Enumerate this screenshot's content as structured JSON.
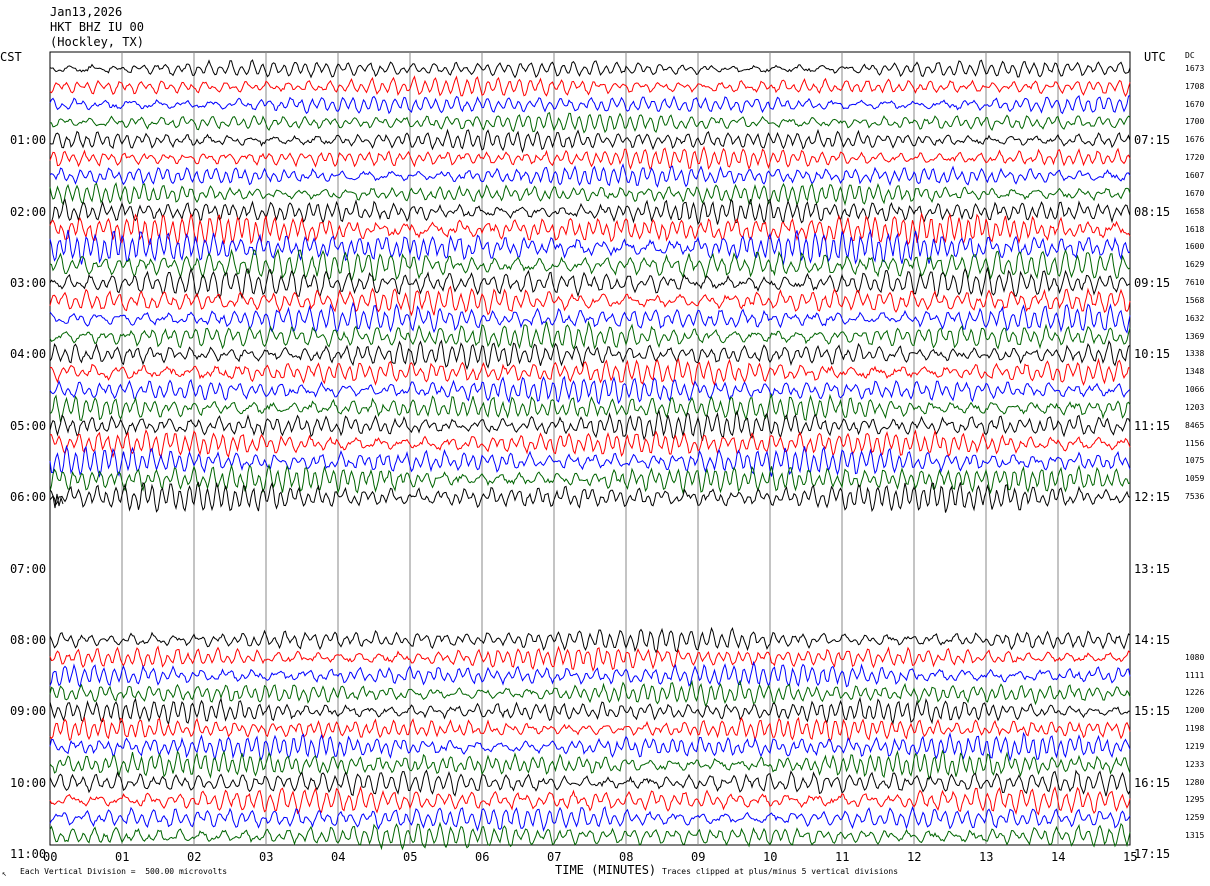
{
  "header": {
    "date": "Jan13,2026",
    "station": "HKT BHZ IU 00",
    "location": "(Hockley, TX)"
  },
  "left_tz": "CST",
  "right_tz": "UTC",
  "dc_header": "DC",
  "footer": {
    "scale_note": "Each Vertical Division =  500.00 microvolts",
    "clip_note": "Traces clipped at plus/minus 5 vertical divisions",
    "corner_mark": "↖"
  },
  "colors": {
    "black": "#000000",
    "red": "#ff0000",
    "blue": "#0000ff",
    "green": "#006400",
    "grid": "#888888"
  },
  "chart_data": {
    "type": "line",
    "title": "",
    "xlabel": "TIME (MINUTES)",
    "x_ticks": [
      "00",
      "01",
      "02",
      "03",
      "04",
      "05",
      "06",
      "07",
      "08",
      "09",
      "10",
      "11",
      "12",
      "13",
      "14",
      "15"
    ],
    "xlim": [
      0,
      15
    ],
    "rows_per_hour": 4,
    "color_cycle": [
      "black",
      "red",
      "blue",
      "green"
    ],
    "left_time_labels": [
      "01:00",
      "02:00",
      "03:00",
      "04:00",
      "05:00",
      "06:00",
      "07:00",
      "08:00",
      "09:00",
      "10:00",
      "11:00"
    ],
    "right_time_labels": [
      "07:15",
      "08:15",
      "09:15",
      "10:15",
      "11:15",
      "12:15",
      "13:15",
      "14:15",
      "15:15",
      "16:15",
      "17:15"
    ],
    "traces": [
      {
        "dc": "1673",
        "amp": 0.9
      },
      {
        "dc": "1708",
        "amp": 1.0
      },
      {
        "dc": "1670",
        "amp": 1.0
      },
      {
        "dc": "1700",
        "amp": 1.0
      },
      {
        "dc": "1676",
        "amp": 1.1
      },
      {
        "dc": "1720",
        "amp": 1.1
      },
      {
        "dc": "1607",
        "amp": 1.1
      },
      {
        "dc": "1670",
        "amp": 1.1
      },
      {
        "dc": "1658",
        "amp": 1.3
      },
      {
        "dc": "1618",
        "amp": 1.6
      },
      {
        "dc": "1600",
        "amp": 1.7
      },
      {
        "dc": "1629",
        "amp": 1.6
      },
      {
        "dc": "7610",
        "amp": 1.5
      },
      {
        "dc": "1568",
        "amp": 1.4
      },
      {
        "dc": "1632",
        "amp": 1.4
      },
      {
        "dc": "1369",
        "amp": 1.4
      },
      {
        "dc": "1338",
        "amp": 1.4
      },
      {
        "dc": "1348",
        "amp": 1.4
      },
      {
        "dc": "1066",
        "amp": 1.4
      },
      {
        "dc": "1203",
        "amp": 1.4
      },
      {
        "dc": "8465",
        "amp": 1.4
      },
      {
        "dc": "1156",
        "amp": 1.4
      },
      {
        "dc": "1075",
        "amp": 1.4
      },
      {
        "dc": "1059",
        "amp": 1.5
      },
      {
        "dc": "7536",
        "amp": 1.5
      },
      {
        "dc": "",
        "amp": 0.0
      },
      {
        "dc": "",
        "amp": 0.0
      },
      {
        "dc": "",
        "amp": 0.0
      },
      {
        "dc": "",
        "amp": 0.0
      },
      {
        "dc": "",
        "amp": 0.0
      },
      {
        "dc": "",
        "amp": 0.0
      },
      {
        "dc": "",
        "amp": 0.0
      },
      {
        "dc": "",
        "amp": 1.2
      },
      {
        "dc": "1080",
        "amp": 1.2
      },
      {
        "dc": "1111",
        "amp": 1.2
      },
      {
        "dc": "1226",
        "amp": 1.2
      },
      {
        "dc": "1200",
        "amp": 1.2
      },
      {
        "dc": "1198",
        "amp": 1.2
      },
      {
        "dc": "1219",
        "amp": 1.3
      },
      {
        "dc": "1233",
        "amp": 1.3
      },
      {
        "dc": "1280",
        "amp": 1.3
      },
      {
        "dc": "1295",
        "amp": 1.3
      },
      {
        "dc": "1259",
        "amp": 1.3
      },
      {
        "dc": "1315",
        "amp": 1.3
      }
    ]
  }
}
